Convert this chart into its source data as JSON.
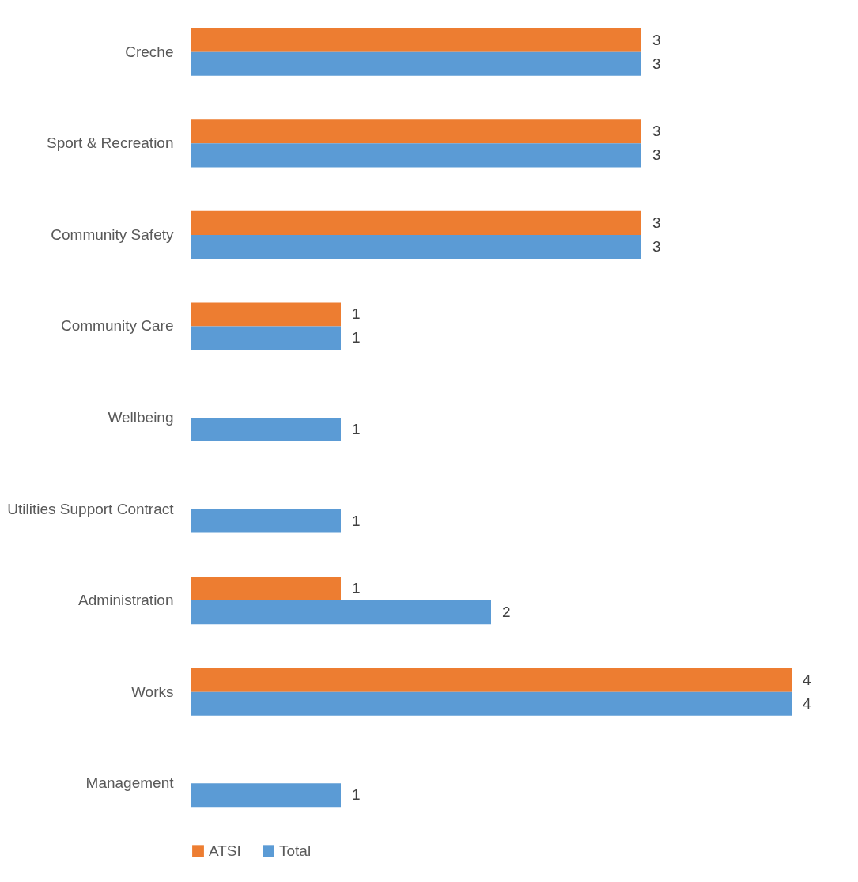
{
  "chart_data": {
    "type": "bar",
    "orientation": "horizontal",
    "categories": [
      "Creche",
      "Sport & Recreation",
      "Community Safety",
      "Community Care",
      "Wellbeing",
      "Utilities Support Contract",
      "Administration",
      "Works",
      "Management"
    ],
    "series": [
      {
        "name": "ATSI",
        "color": "#ed7d31",
        "values": [
          3,
          3,
          3,
          1,
          null,
          null,
          1,
          4,
          null
        ]
      },
      {
        "name": "Total",
        "color": "#5b9bd5",
        "values": [
          3,
          3,
          3,
          1,
          1,
          1,
          2,
          4,
          1
        ]
      }
    ],
    "data_labels": true,
    "legend": "bottom"
  }
}
